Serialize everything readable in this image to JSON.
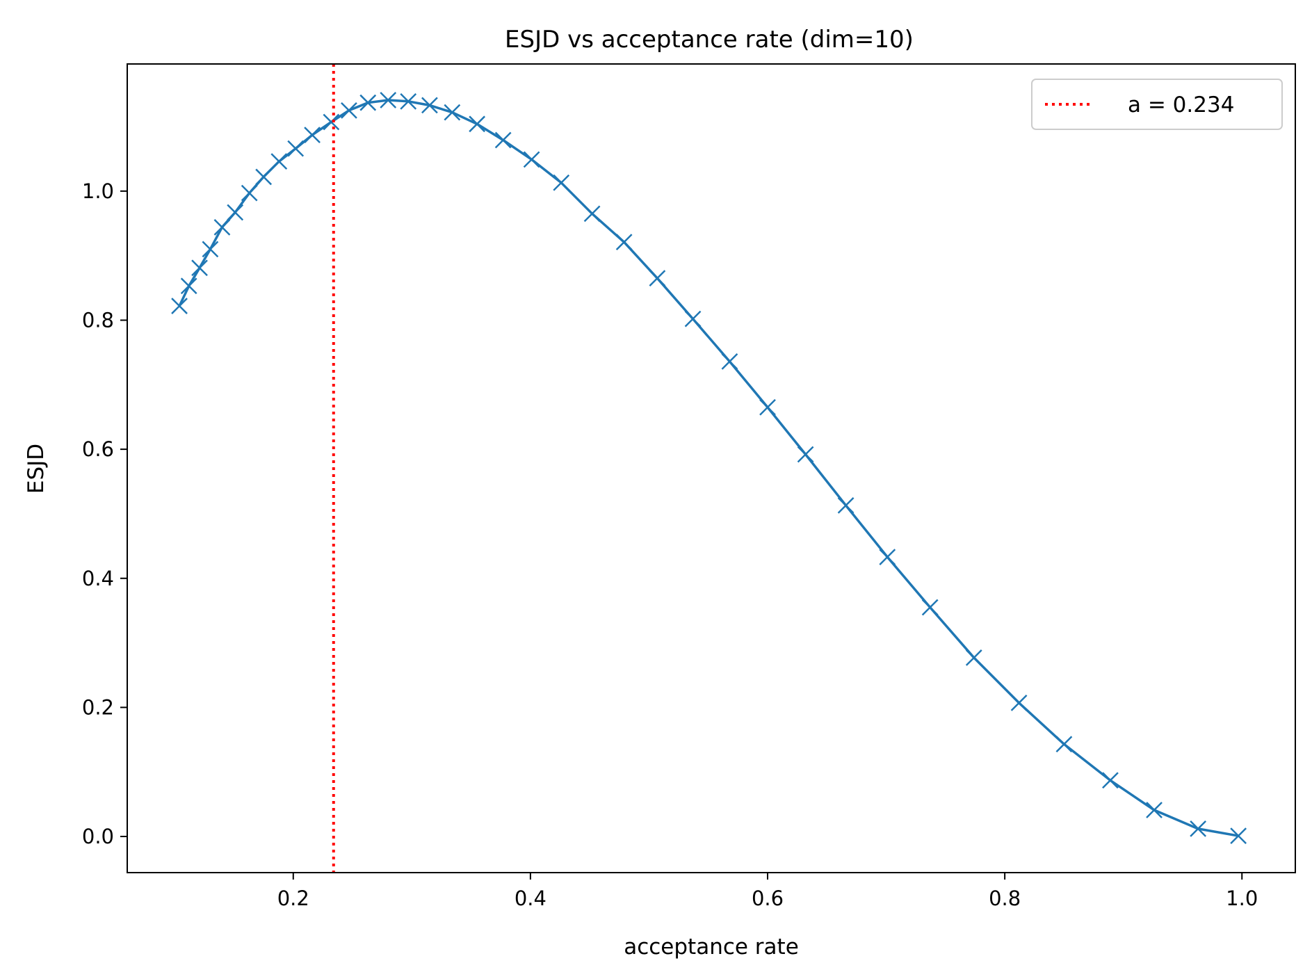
{
  "chart_data": {
    "type": "line",
    "title": "ESJD vs acceptance rate (dim=10)",
    "xlabel": "acceptance rate",
    "ylabel": "ESJD",
    "xlim": [
      0.06,
      1.045
    ],
    "ylim": [
      -0.056,
      1.197
    ],
    "x_ticks": [
      0.2,
      0.4,
      0.6,
      0.8,
      1.0
    ],
    "x_tick_labels": [
      "0.2",
      "0.4",
      "0.6",
      "0.8",
      "1.0"
    ],
    "y_ticks": [
      0.0,
      0.2,
      0.4,
      0.6,
      0.8,
      1.0
    ],
    "y_tick_labels": [
      "0.0",
      "0.2",
      "0.4",
      "0.6",
      "0.8",
      "1.0"
    ],
    "grid": false,
    "legend_position": "top-right",
    "series": [
      {
        "name": "ESJD",
        "color": "#1f77b4",
        "marker": "x",
        "x": [
          0.104,
          0.112,
          0.121,
          0.13,
          0.14,
          0.151,
          0.163,
          0.175,
          0.188,
          0.202,
          0.216,
          0.232,
          0.247,
          0.263,
          0.28,
          0.297,
          0.315,
          0.334,
          0.355,
          0.377,
          0.401,
          0.426,
          0.452,
          0.479,
          0.507,
          0.537,
          0.568,
          0.6,
          0.632,
          0.666,
          0.701,
          0.737,
          0.774,
          0.812,
          0.85,
          0.889,
          0.926,
          0.963,
          0.997
        ],
        "y": [
          0.822,
          0.853,
          0.881,
          0.91,
          0.944,
          0.967,
          0.997,
          1.022,
          1.046,
          1.066,
          1.087,
          1.107,
          1.125,
          1.137,
          1.141,
          1.139,
          1.133,
          1.122,
          1.104,
          1.079,
          1.049,
          1.013,
          0.965,
          0.921,
          0.865,
          0.802,
          0.736,
          0.665,
          0.592,
          0.513,
          0.433,
          0.355,
          0.277,
          0.207,
          0.143,
          0.087,
          0.041,
          0.012,
          0.001
        ]
      }
    ],
    "reference_line": {
      "type": "vertical",
      "x": 0.234,
      "color": "#ff0000",
      "style": "dotted",
      "label": "a = 0.234"
    }
  }
}
